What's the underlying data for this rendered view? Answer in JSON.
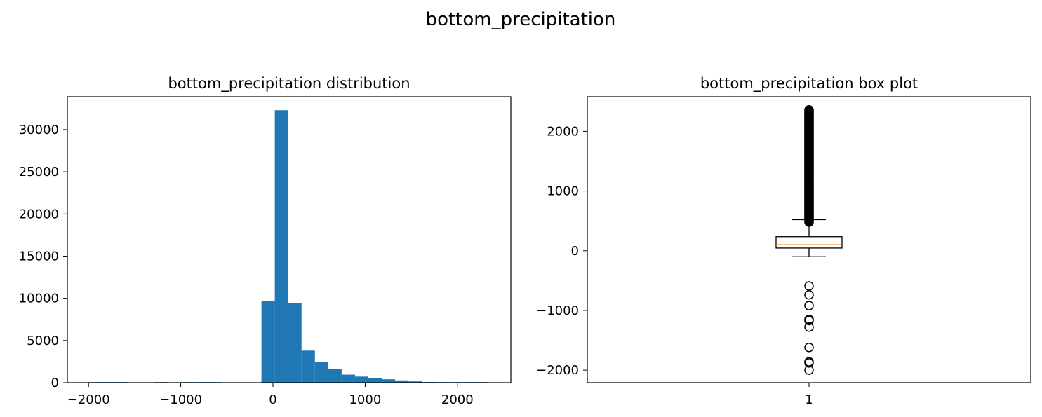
{
  "suptitle": "bottom_precipitation",
  "colors": {
    "bar": "#1f77b4",
    "median": "#ff7f0e",
    "axis": "#000000"
  },
  "chart_data": [
    {
      "type": "bar",
      "title": "bottom_precipitation distribution",
      "xlabel": "",
      "ylabel": "",
      "xlim": [
        -2230,
        2580
      ],
      "ylim": [
        0,
        33900
      ],
      "xticks": [
        -2000,
        -1000,
        0,
        1000,
        2000
      ],
      "xtick_labels": [
        "−2000",
        "−1000",
        "0",
        "1000",
        "2000"
      ],
      "yticks": [
        0,
        5000,
        10000,
        15000,
        20000,
        25000,
        30000
      ],
      "ytick_labels": [
        "0",
        "5000",
        "10000",
        "15000",
        "20000",
        "25000",
        "30000"
      ],
      "bins": [
        {
          "x0": -2010,
          "x1": -1865,
          "count": 2
        },
        {
          "x0": -1865,
          "x1": -1720,
          "count": 1
        },
        {
          "x0": -1720,
          "x1": -1575,
          "count": 1
        },
        {
          "x0": -1575,
          "x1": -1430,
          "count": 0
        },
        {
          "x0": -1430,
          "x1": -1285,
          "count": 0
        },
        {
          "x0": -1285,
          "x1": -1140,
          "count": 3
        },
        {
          "x0": -1140,
          "x1": -995,
          "count": 0
        },
        {
          "x0": -995,
          "x1": -850,
          "count": 1
        },
        {
          "x0": -850,
          "x1": -705,
          "count": 1
        },
        {
          "x0": -705,
          "x1": -560,
          "count": 1
        },
        {
          "x0": -560,
          "x1": -415,
          "count": 0
        },
        {
          "x0": -415,
          "x1": -270,
          "count": 0
        },
        {
          "x0": -270,
          "x1": -125,
          "count": 0
        },
        {
          "x0": -125,
          "x1": 20,
          "count": 9700
        },
        {
          "x0": 20,
          "x1": 165,
          "count": 32300
        },
        {
          "x0": 165,
          "x1": 310,
          "count": 9450
        },
        {
          "x0": 310,
          "x1": 455,
          "count": 3800
        },
        {
          "x0": 455,
          "x1": 600,
          "count": 2450
        },
        {
          "x0": 600,
          "x1": 745,
          "count": 1600
        },
        {
          "x0": 745,
          "x1": 890,
          "count": 950
        },
        {
          "x0": 890,
          "x1": 1035,
          "count": 720
        },
        {
          "x0": 1035,
          "x1": 1180,
          "count": 580
        },
        {
          "x0": 1180,
          "x1": 1325,
          "count": 400
        },
        {
          "x0": 1325,
          "x1": 1470,
          "count": 270
        },
        {
          "x0": 1470,
          "x1": 1615,
          "count": 150
        },
        {
          "x0": 1615,
          "x1": 1760,
          "count": 80
        },
        {
          "x0": 1760,
          "x1": 1905,
          "count": 45
        },
        {
          "x0": 1905,
          "x1": 2050,
          "count": 25
        },
        {
          "x0": 2050,
          "x1": 2195,
          "count": 12
        },
        {
          "x0": 2195,
          "x1": 2340,
          "count": 5
        }
      ]
    },
    {
      "type": "box",
      "title": "bottom_precipitation box plot",
      "xlabel": "",
      "ylabel": "",
      "category": "1",
      "ylim": [
        -2210,
        2580
      ],
      "yticks": [
        -2000,
        -1000,
        0,
        1000,
        2000
      ],
      "ytick_labels": [
        "−2000",
        "−1000",
        "0",
        "1000",
        "2000"
      ],
      "whisker_low": -100,
      "q1": 45,
      "median": 100,
      "q3": 235,
      "whisker_high": 520,
      "outliers_high_range": [
        480,
        2360
      ],
      "outliers_low": [
        -590,
        -740,
        -920,
        -1150,
        -1170,
        -1280,
        -1620,
        -1860,
        -1880,
        -2000
      ]
    }
  ]
}
